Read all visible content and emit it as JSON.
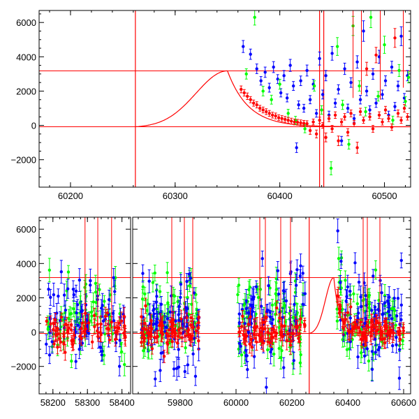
{
  "chart_data": [
    {
      "type": "scatter",
      "panel": "top",
      "title": "",
      "xlabel": "",
      "ylabel": "",
      "xlim": [
        60170,
        60525
      ],
      "ylim": [
        -3600,
        6700
      ],
      "x_ticks": [
        60200,
        60300,
        60400,
        60500
      ],
      "y_ticks": [
        -2000,
        0,
        2000,
        4000,
        6000
      ],
      "grid": false,
      "colors": {
        "series_1": "#0000ff",
        "series_2": "#00ff00",
        "series_3": "#ff0000",
        "model": "#ff0000",
        "frame": "#000000"
      },
      "horizontal_lines": [
        3180,
        -80
      ],
      "vertical_lines": [
        60262,
        60438,
        60442
      ],
      "model_curve": {
        "x_start": 60262,
        "x_peak": 60350,
        "x_end": 60525,
        "peak": 3180,
        "baseline": -80,
        "rise_width": 30,
        "decay_tau": 20
      },
      "series": [
        {
          "color": "#0000ff",
          "points": [
            [
              60365,
              4600,
              350
            ],
            [
              60372,
              4150,
              300
            ],
            [
              60378,
              3300,
              280
            ],
            [
              60382,
              2600,
              250
            ],
            [
              60386,
              3100,
              300
            ],
            [
              60390,
              2200,
              260
            ],
            [
              60394,
              3400,
              320
            ],
            [
              60398,
              2700,
              260
            ],
            [
              60401,
              1900,
              240
            ],
            [
              60404,
              2900,
              300
            ],
            [
              60407,
              1600,
              230
            ],
            [
              60410,
              3500,
              350
            ],
            [
              60413,
              2300,
              260
            ],
            [
              60416,
              -1300,
              280
            ],
            [
              60418,
              1200,
              230
            ],
            [
              60420,
              2600,
              280
            ],
            [
              60423,
              1000,
              230
            ],
            [
              60426,
              3200,
              320
            ],
            [
              60429,
              1500,
              240
            ],
            [
              60432,
              2400,
              280
            ],
            [
              60435,
              700,
              220
            ],
            [
              60438,
              3900,
              380
            ],
            [
              60441,
              1800,
              260
            ],
            [
              60444,
              2900,
              300
            ],
            [
              60447,
              600,
              230
            ],
            [
              60450,
              4200,
              400
            ],
            [
              60453,
              1300,
              240
            ],
            [
              60456,
              2100,
              270
            ],
            [
              60459,
              -900,
              260
            ],
            [
              60462,
              3300,
              330
            ],
            [
              60465,
              1000,
              240
            ],
            [
              60468,
              2500,
              280
            ],
            [
              60471,
              400,
              220
            ],
            [
              60474,
              3700,
              360
            ],
            [
              60477,
              1500,
              250
            ],
            [
              60480,
              5500,
              600
            ],
            [
              60483,
              2000,
              270
            ],
            [
              60486,
              900,
              240
            ],
            [
              60489,
              3000,
              310
            ],
            [
              60492,
              1300,
              250
            ],
            [
              60495,
              4000,
              380
            ],
            [
              60498,
              1800,
              260
            ],
            [
              60501,
              2600,
              290
            ],
            [
              60504,
              600,
              230
            ],
            [
              60507,
              3400,
              340
            ],
            [
              60510,
              1100,
              240
            ],
            [
              60513,
              2300,
              280
            ],
            [
              60516,
              5200,
              550
            ],
            [
              60519,
              1600,
              260
            ],
            [
              60522,
              2900,
              300
            ]
          ]
        },
        {
          "color": "#00ff00",
          "points": [
            [
              60368,
              3000,
              300
            ],
            [
              60376,
              6300,
              450
            ],
            [
              60384,
              2000,
              280
            ],
            [
              60392,
              1500,
              260
            ],
            [
              60400,
              2400,
              290
            ],
            [
              60408,
              700,
              240
            ],
            [
              60415,
              300,
              230
            ],
            [
              60424,
              -200,
              230
            ],
            [
              60433,
              2300,
              300
            ],
            [
              60440,
              900,
              250
            ],
            [
              60449,
              -2500,
              380
            ],
            [
              60455,
              4600,
              520
            ],
            [
              60460,
              1200,
              270
            ],
            [
              60466,
              -1100,
              280
            ],
            [
              60470,
              5800,
              560
            ],
            [
              60476,
              2300,
              300
            ],
            [
              60482,
              800,
              250
            ],
            [
              60487,
              6300,
              600
            ],
            [
              60494,
              1700,
              280
            ],
            [
              60500,
              4700,
              500
            ],
            [
              60508,
              300,
              240
            ],
            [
              60514,
              3200,
              350
            ],
            [
              60520,
              1400,
              270
            ],
            [
              60523,
              2800,
              320
            ]
          ]
        },
        {
          "color": "#ff0000",
          "points": [
            [
              60363,
              2100,
              200
            ],
            [
              60366,
              1900,
              190
            ],
            [
              60369,
              1700,
              190
            ],
            [
              60372,
              1500,
              180
            ],
            [
              60375,
              1300,
              180
            ],
            [
              60378,
              1200,
              180
            ],
            [
              60381,
              1000,
              170
            ],
            [
              60384,
              900,
              170
            ],
            [
              60387,
              800,
              170
            ],
            [
              60390,
              700,
              170
            ],
            [
              60393,
              600,
              170
            ],
            [
              60396,
              550,
              170
            ],
            [
              60399,
              450,
              170
            ],
            [
              60402,
              400,
              170
            ],
            [
              60405,
              350,
              170
            ],
            [
              60408,
              300,
              170
            ],
            [
              60411,
              250,
              170
            ],
            [
              60414,
              200,
              170
            ],
            [
              60417,
              180,
              170
            ],
            [
              60420,
              150,
              170
            ],
            [
              60423,
              120,
              170
            ],
            [
              60426,
              100,
              170
            ],
            [
              60429,
              -300,
              220
            ],
            [
              60432,
              200,
              170
            ],
            [
              60435,
              -500,
              230
            ],
            [
              60438,
              300,
              180
            ],
            [
              60441,
              0,
              170
            ],
            [
              60444,
              -700,
              260
            ],
            [
              60447,
              400,
              180
            ],
            [
              60450,
              -200,
              200
            ],
            [
              60453,
              600,
              190
            ],
            [
              60456,
              -900,
              280
            ],
            [
              60459,
              200,
              180
            ],
            [
              60462,
              500,
              190
            ],
            [
              60465,
              -400,
              210
            ],
            [
              60468,
              700,
              200
            ],
            [
              60471,
              100,
              180
            ],
            [
              60474,
              -1300,
              320
            ],
            [
              60477,
              800,
              200
            ],
            [
              60480,
              300,
              180
            ],
            [
              60483,
              3300,
              380
            ],
            [
              60486,
              500,
              190
            ],
            [
              60489,
              -200,
              200
            ],
            [
              60492,
              4100,
              450
            ],
            [
              60495,
              600,
              190
            ],
            [
              60498,
              200,
              180
            ],
            [
              60501,
              900,
              210
            ],
            [
              60504,
              400,
              180
            ],
            [
              60507,
              -100,
              190
            ],
            [
              60510,
              5100,
              550
            ],
            [
              60513,
              700,
              200
            ],
            [
              60516,
              300,
              180
            ],
            [
              60519,
              1000,
              220
            ],
            [
              60522,
              500,
              190
            ]
          ]
        }
      ]
    },
    {
      "type": "scatter",
      "panel": "bottom",
      "title": "",
      "xlabel": "",
      "ylabel": "",
      "broken_x_axis": true,
      "ylim": [
        -3600,
        6700
      ],
      "y_ticks": [
        -2000,
        0,
        2000,
        4000,
        6000
      ],
      "grid": false,
      "horizontal_lines": [
        3180,
        -80
      ],
      "segments": [
        {
          "xlim": [
            58160,
            58425
          ],
          "x_ticks": [
            58200,
            58300,
            58400
          ],
          "data_range": [
            58180,
            58410
          ],
          "spikes": [
            58293,
            58330,
            58370
          ]
        },
        {
          "xlim": [
            59630,
            60625
          ],
          "x_ticks": [
            59800,
            60000,
            60200,
            60400,
            60600
          ],
          "clusters": [
            [
              59660,
              59870
            ],
            [
              60005,
              60250
            ],
            [
              60360,
              60600
            ]
          ],
          "spikes": [
            59770,
            59815,
            59845,
            60085,
            60105,
            60160,
            60195,
            60455,
            60470,
            60515
          ],
          "vertical_lines": [
            60262
          ]
        }
      ],
      "model_curve": {
        "x_start": 60262,
        "x_peak": 60350,
        "x_end": 60625,
        "peak": 3180,
        "baseline": -80,
        "rise_width": 30,
        "decay_tau": 20
      }
    }
  ]
}
